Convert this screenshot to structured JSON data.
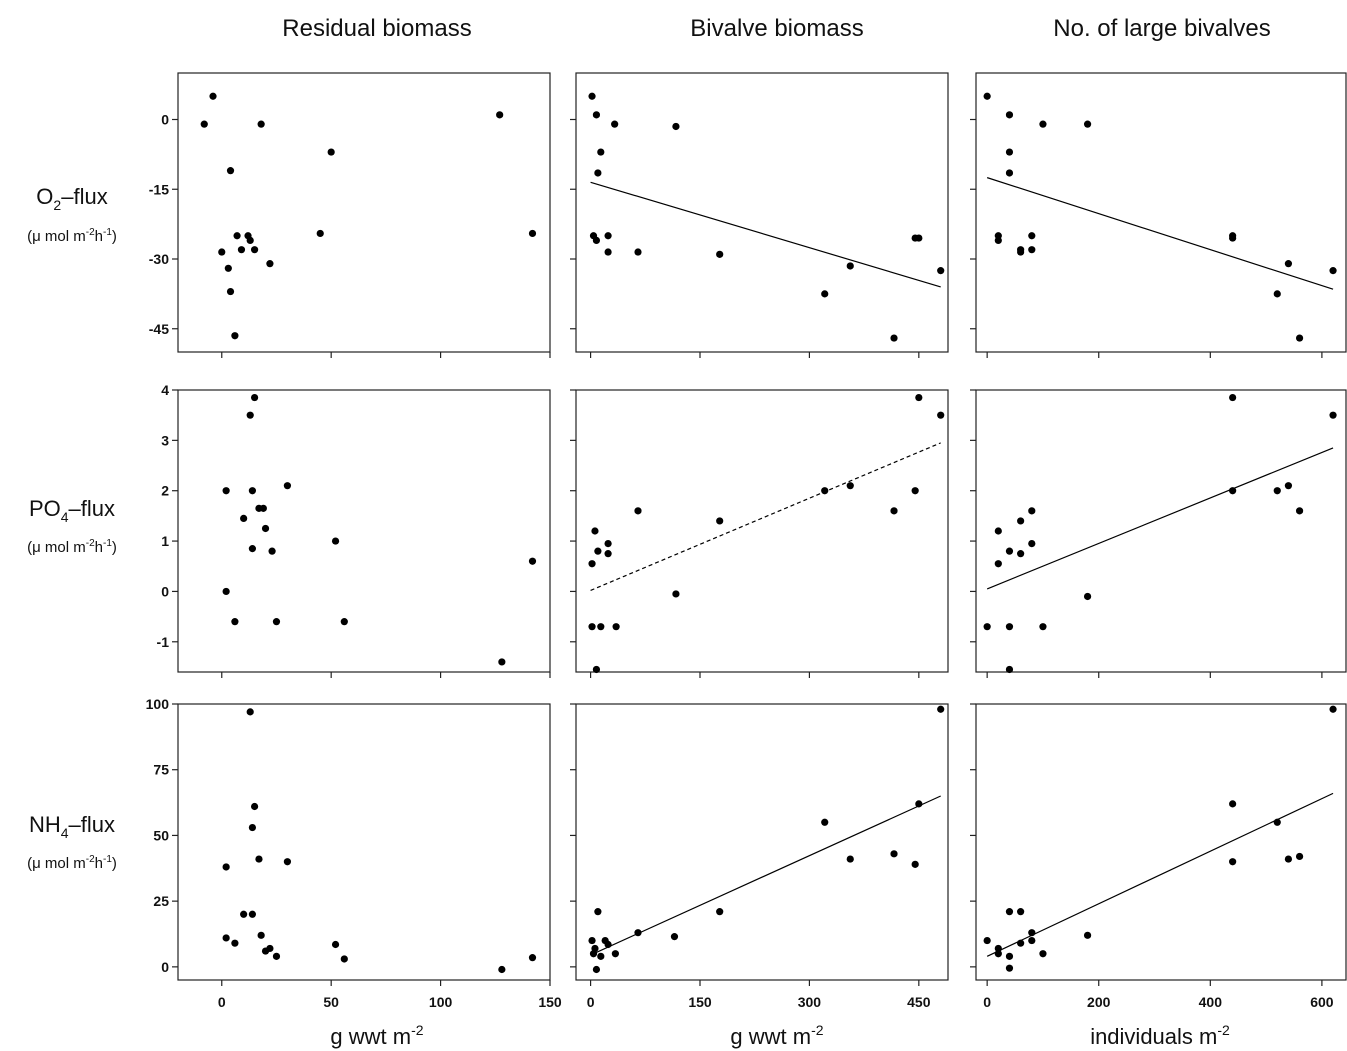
{
  "columns": [
    {
      "title": "Residual biomass"
    },
    {
      "title": "Bivalve biomass"
    },
    {
      "title": "No. of large bivalves"
    }
  ],
  "rows": [
    {
      "flux": "O",
      "flux_sub": "2",
      "flux_suffix": "–flux",
      "unit_main": "(μ mol m",
      "unit_exp1": "-2",
      "unit_mid": "h",
      "unit_exp2": "-1",
      "unit_close": ")"
    },
    {
      "flux": "PO",
      "flux_sub": "4",
      "flux_suffix": "–flux",
      "unit_main": "(μ mol m",
      "unit_exp1": "-2",
      "unit_mid": "h",
      "unit_exp2": "-1",
      "unit_close": ")"
    },
    {
      "flux": "NH",
      "flux_sub": "4",
      "flux_suffix": "–flux",
      "unit_main": "(μ mol m",
      "unit_exp1": "-2",
      "unit_mid": "h",
      "unit_exp2": "-1",
      "unit_close": ")"
    }
  ],
  "xlabels": [
    {
      "text": "g wwt m",
      "exp": "-2"
    },
    {
      "text": "g wwt m",
      "exp": "-2"
    },
    {
      "text": "individuals m",
      "exp": "-2"
    }
  ],
  "chart_data": [
    {
      "type": "scatter",
      "col": 0,
      "row": 0,
      "xlim": [
        -20,
        150
      ],
      "ylim": [
        -50,
        10
      ],
      "xticks": [
        0,
        50,
        100,
        150
      ],
      "yticks": [
        0,
        -15,
        -30,
        -45
      ],
      "points": [
        [
          -8,
          -1
        ],
        [
          -4,
          5
        ],
        [
          4,
          -11
        ],
        [
          12,
          -25
        ],
        [
          18,
          -1
        ],
        [
          7,
          -25
        ],
        [
          0,
          -28.5
        ],
        [
          3,
          -32
        ],
        [
          4,
          -37
        ],
        [
          6,
          -46.5
        ],
        [
          9,
          -28
        ],
        [
          13,
          -26
        ],
        [
          15,
          -28
        ],
        [
          22,
          -31
        ],
        [
          45,
          -24.5
        ],
        [
          50,
          -7
        ],
        [
          127,
          1
        ],
        [
          142,
          -24.5
        ]
      ]
    },
    {
      "type": "scatter",
      "col": 1,
      "row": 0,
      "xlim": [
        -20,
        490
      ],
      "ylim": [
        -50,
        10
      ],
      "xticks": [
        0,
        150,
        300,
        450
      ],
      "yticks": [
        0,
        -15,
        -30,
        -45
      ],
      "points": [
        [
          2,
          5
        ],
        [
          8,
          1
        ],
        [
          14,
          -7
        ],
        [
          10,
          -11.5
        ],
        [
          33,
          -1
        ],
        [
          117,
          -1.5
        ],
        [
          4,
          -25
        ],
        [
          8,
          -26
        ],
        [
          24,
          -25
        ],
        [
          24,
          -28.5
        ],
        [
          65,
          -28.5
        ],
        [
          177,
          -29
        ],
        [
          356,
          -31.5
        ],
        [
          321,
          -37.5
        ],
        [
          416,
          -47
        ],
        [
          445,
          -25.5
        ],
        [
          450,
          -25.5
        ],
        [
          480,
          -32.5
        ]
      ],
      "fit": {
        "x": [
          0,
          480
        ],
        "y": [
          -13.5,
          -36
        ],
        "style": "solid"
      }
    },
    {
      "type": "scatter",
      "col": 2,
      "row": 0,
      "xlim": [
        -20,
        645
      ],
      "ylim": [
        -50,
        10
      ],
      "xticks": [
        0,
        200,
        400,
        600
      ],
      "yticks": [
        0,
        -15,
        -30,
        -45
      ],
      "points": [
        [
          0,
          5
        ],
        [
          40,
          1
        ],
        [
          40,
          -7
        ],
        [
          40,
          -11.5
        ],
        [
          20,
          -25
        ],
        [
          20,
          -26
        ],
        [
          100,
          -1
        ],
        [
          180,
          -1
        ],
        [
          60,
          -28
        ],
        [
          60,
          -28.5
        ],
        [
          80,
          -25
        ],
        [
          80,
          -28
        ],
        [
          440,
          -25.5
        ],
        [
          440,
          -25
        ],
        [
          540,
          -31
        ],
        [
          520,
          -37.5
        ],
        [
          560,
          -47
        ],
        [
          620,
          -32.5
        ]
      ],
      "fit": {
        "x": [
          0,
          620
        ],
        "y": [
          -12.5,
          -36.5
        ],
        "style": "solid"
      }
    },
    {
      "type": "scatter",
      "col": 0,
      "row": 1,
      "xlim": [
        -20,
        150
      ],
      "ylim": [
        -1.6,
        4
      ],
      "xticks": [
        0,
        50,
        100,
        150
      ],
      "yticks": [
        4,
        3,
        2,
        1,
        0,
        -1
      ],
      "points": [
        [
          2,
          2
        ],
        [
          2,
          0
        ],
        [
          6,
          -0.6
        ],
        [
          10,
          1.45
        ],
        [
          13,
          3.5
        ],
        [
          14,
          2
        ],
        [
          14,
          0.85
        ],
        [
          15,
          3.85
        ],
        [
          17,
          1.65
        ],
        [
          19,
          1.65
        ],
        [
          20,
          1.25
        ],
        [
          23,
          0.8
        ],
        [
          25,
          -0.6
        ],
        [
          30,
          2.1
        ],
        [
          52,
          1
        ],
        [
          56,
          -0.6
        ],
        [
          128,
          -1.4
        ],
        [
          142,
          0.6
        ]
      ]
    },
    {
      "type": "scatter",
      "col": 1,
      "row": 1,
      "xlim": [
        -20,
        490
      ],
      "ylim": [
        -1.6,
        4
      ],
      "xticks": [
        0,
        150,
        300,
        450
      ],
      "yticks": [
        4,
        3,
        2,
        1,
        0,
        -1
      ],
      "points": [
        [
          2,
          0.55
        ],
        [
          6,
          1.2
        ],
        [
          10,
          0.8
        ],
        [
          24,
          0.95
        ],
        [
          24,
          0.75
        ],
        [
          65,
          1.6
        ],
        [
          177,
          1.4
        ],
        [
          117,
          -0.05
        ],
        [
          2,
          -0.7
        ],
        [
          14,
          -0.7
        ],
        [
          35,
          -0.7
        ],
        [
          8,
          -1.55
        ],
        [
          321,
          2
        ],
        [
          356,
          2.1
        ],
        [
          416,
          1.6
        ],
        [
          445,
          2
        ],
        [
          450,
          3.85
        ],
        [
          480,
          3.5
        ]
      ],
      "fit": {
        "x": [
          0,
          480
        ],
        "y": [
          0.02,
          2.95
        ],
        "style": "dashed"
      }
    },
    {
      "type": "scatter",
      "col": 2,
      "row": 1,
      "xlim": [
        -20,
        645
      ],
      "ylim": [
        -1.6,
        4
      ],
      "xticks": [
        0,
        200,
        400,
        600
      ],
      "yticks": [
        4,
        3,
        2,
        1,
        0,
        -1
      ],
      "points": [
        [
          0,
          -0.7
        ],
        [
          20,
          1.2
        ],
        [
          20,
          0.55
        ],
        [
          40,
          0.8
        ],
        [
          60,
          0.75
        ],
        [
          60,
          1.4
        ],
        [
          80,
          1.6
        ],
        [
          80,
          0.95
        ],
        [
          40,
          -0.7
        ],
        [
          100,
          -0.7
        ],
        [
          40,
          -1.55
        ],
        [
          180,
          -0.1
        ],
        [
          440,
          3.85
        ],
        [
          440,
          2
        ],
        [
          520,
          2
        ],
        [
          540,
          2.1
        ],
        [
          560,
          1.6
        ],
        [
          620,
          3.5
        ]
      ],
      "fit": {
        "x": [
          0,
          620
        ],
        "y": [
          0.05,
          2.85
        ],
        "style": "solid"
      }
    },
    {
      "type": "scatter",
      "col": 0,
      "row": 2,
      "xlim": [
        -20,
        150
      ],
      "ylim": [
        -5,
        100
      ],
      "xticks": [
        0,
        50,
        100,
        150
      ],
      "yticks": [
        100,
        75,
        50,
        25,
        0
      ],
      "points": [
        [
          2,
          11
        ],
        [
          2,
          38
        ],
        [
          6,
          9
        ],
        [
          10,
          20
        ],
        [
          13,
          97
        ],
        [
          14,
          53
        ],
        [
          14,
          20
        ],
        [
          15,
          61
        ],
        [
          17,
          41
        ],
        [
          18,
          12
        ],
        [
          20,
          6
        ],
        [
          22,
          7
        ],
        [
          25,
          4
        ],
        [
          30,
          40
        ],
        [
          52,
          8.5
        ],
        [
          56,
          3
        ],
        [
          128,
          -1
        ],
        [
          142,
          3.5
        ]
      ]
    },
    {
      "type": "scatter",
      "col": 1,
      "row": 2,
      "xlim": [
        -20,
        490
      ],
      "ylim": [
        -5,
        100
      ],
      "xticks": [
        0,
        150,
        300,
        450
      ],
      "yticks": [
        100,
        75,
        50,
        25,
        0
      ],
      "points": [
        [
          2,
          10
        ],
        [
          4,
          5
        ],
        [
          6,
          7
        ],
        [
          8,
          -1
        ],
        [
          10,
          21
        ],
        [
          14,
          4
        ],
        [
          20,
          10
        ],
        [
          24,
          8.5
        ],
        [
          34,
          5
        ],
        [
          65,
          13
        ],
        [
          115,
          11.5
        ],
        [
          177,
          21
        ],
        [
          321,
          55
        ],
        [
          356,
          41
        ],
        [
          416,
          43
        ],
        [
          445,
          39
        ],
        [
          450,
          62
        ],
        [
          480,
          98
        ]
      ],
      "fit": {
        "x": [
          0,
          480
        ],
        "y": [
          4.5,
          65
        ],
        "style": "solid"
      }
    },
    {
      "type": "scatter",
      "col": 2,
      "row": 2,
      "xlim": [
        -20,
        645
      ],
      "ylim": [
        -5,
        100
      ],
      "xticks": [
        0,
        200,
        400,
        600
      ],
      "yticks": [
        100,
        75,
        50,
        25,
        0
      ],
      "points": [
        [
          0,
          10
        ],
        [
          20,
          7
        ],
        [
          20,
          5
        ],
        [
          40,
          -0.5
        ],
        [
          40,
          4
        ],
        [
          40,
          21
        ],
        [
          60,
          21
        ],
        [
          60,
          9
        ],
        [
          80,
          13
        ],
        [
          80,
          10
        ],
        [
          100,
          5
        ],
        [
          180,
          12
        ],
        [
          440,
          62
        ],
        [
          440,
          40
        ],
        [
          520,
          55
        ],
        [
          540,
          41
        ],
        [
          560,
          42
        ],
        [
          620,
          98
        ]
      ],
      "fit": {
        "x": [
          0,
          620
        ],
        "y": [
          4,
          66
        ],
        "style": "solid"
      }
    }
  ]
}
